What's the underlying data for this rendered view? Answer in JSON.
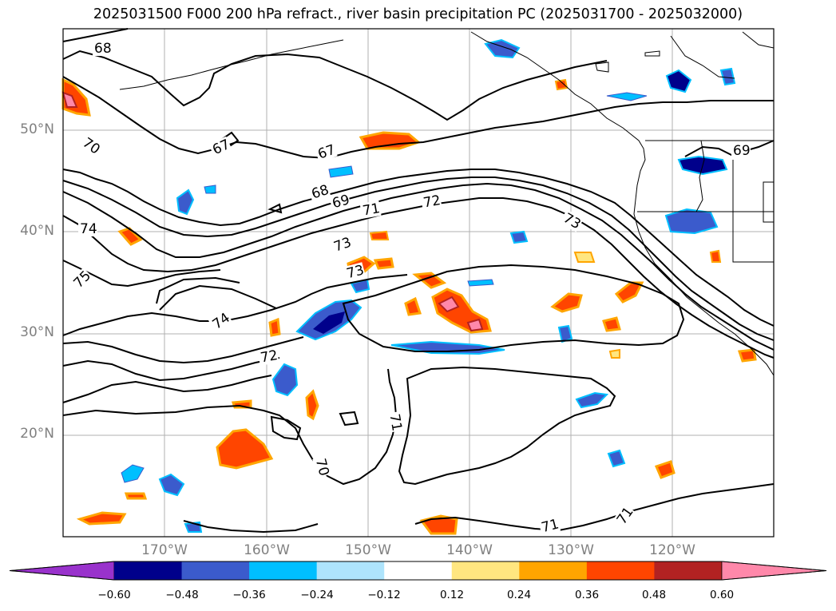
{
  "title": "2025031500 F000 200 hPa refract., river basin precipitation PC (2025031700 - 2025032000)",
  "map": {
    "extent_lon": [
      -180,
      -110
    ],
    "extent_lat": [
      10,
      60
    ],
    "lat_labels": [
      "50°N",
      "40°N",
      "30°N",
      "20°N"
    ],
    "lon_labels": [
      "170°W",
      "160°W",
      "150°W",
      "140°W",
      "130°W",
      "120°W"
    ],
    "contour_labels": [
      "68",
      "67",
      "67",
      "70",
      "68",
      "69",
      "71",
      "72",
      "73",
      "74",
      "73",
      "73",
      "75",
      "74",
      "72",
      "71",
      "70",
      "71",
      "71",
      "69"
    ]
  },
  "colorbar": {
    "ticks": [
      "−0.60",
      "−0.48",
      "−0.36",
      "−0.24",
      "−0.12",
      "0.12",
      "0.24",
      "0.36",
      "0.48",
      "0.60"
    ],
    "colors": [
      "#9932cc",
      "#00008b",
      "#3b5bcc",
      "#00bfff",
      "#aee4fc",
      "#ffffff",
      "#ffe680",
      "#ffa500",
      "#ff4500",
      "#b22222",
      "#ff88aa"
    ]
  }
}
